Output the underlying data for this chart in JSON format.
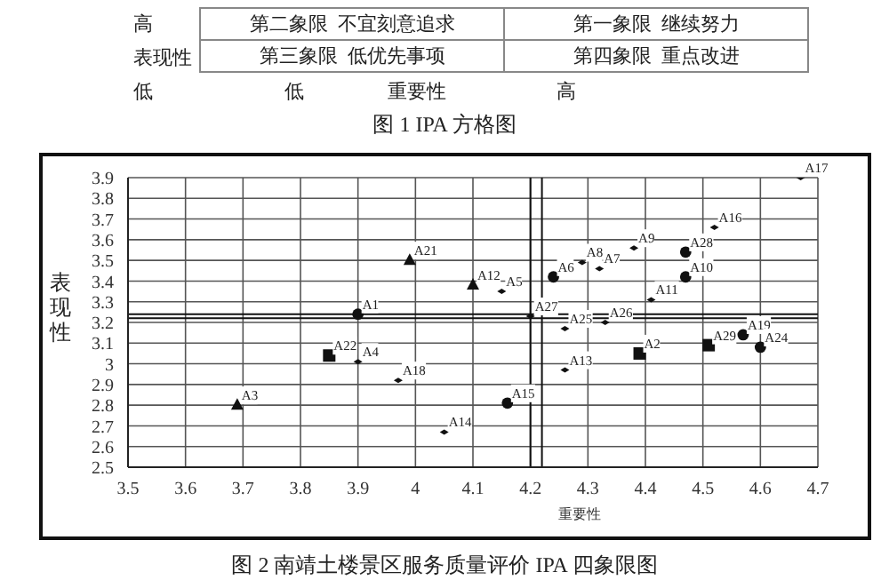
{
  "chart_data": [
    {
      "type": "other",
      "title": "图 1 IPA 方格图",
      "xlabel": "重要性",
      "ylabel": "表现性",
      "categories": [
        "低",
        "高"
      ],
      "y_categories": [
        "高",
        "低"
      ],
      "annotations": [
        "第二象限  不宜刻意追求",
        "第一象限  继续努力",
        "第三象限  低优先事项",
        "第四象限  重点改进"
      ]
    },
    {
      "type": "scatter",
      "title": "图 2 南靖土楼景区服务质量评价 IPA 四象限图",
      "xlabel": "重要性",
      "ylabel": "表现性",
      "xlim": [
        3.5,
        4.7
      ],
      "xticks": [
        3.5,
        3.6,
        3.7,
        3.8,
        3.9,
        4,
        4.1,
        4.2,
        4.3,
        4.4,
        4.5,
        4.6,
        4.7
      ],
      "ylim": [
        2.5,
        3.9
      ],
      "yticks": [
        2.5,
        2.6,
        2.7,
        2.8,
        2.9,
        3,
        3.1,
        3.2,
        3.3,
        3.4,
        3.5,
        3.6,
        3.7,
        3.8,
        3.9
      ],
      "grid": true,
      "series": [
        {
          "color": "#111111",
          "marker": "circle",
          "x": [
            4.24,
            4.47,
            4.47,
            3.9,
            4.57,
            4.6,
            4.16
          ],
          "values": [
            3.42,
            3.54,
            3.42,
            3.24,
            3.14,
            3.08,
            2.81
          ]
        },
        {
          "color": "#111111",
          "marker": "square",
          "x": [
            3.85,
            4.39,
            4.51
          ],
          "values": [
            3.04,
            3.05,
            3.09
          ]
        },
        {
          "color": "#111111",
          "marker": "triangle",
          "x": [
            3.99,
            4.1,
            3.69
          ],
          "values": [
            3.5,
            3.38,
            2.8
          ]
        },
        {
          "color": "#111111",
          "marker": "diamond",
          "x": [
            4.67,
            4.52,
            4.38,
            4.29,
            4.32,
            4.15,
            4.41,
            4.2,
            4.33,
            4.26,
            4.26,
            3.97,
            3.9,
            4.05
          ],
          "values": [
            3.9,
            3.66,
            3.56,
            3.49,
            3.46,
            3.35,
            3.31,
            3.23,
            3.2,
            3.17,
            2.97,
            2.92,
            3.01,
            2.67
          ]
        }
      ],
      "ref_lines": [
        {
          "axis": "x",
          "value": 4.2,
          "color": "#111111"
        },
        {
          "axis": "x",
          "value": 4.22,
          "color": "#111111"
        },
        {
          "axis": "y",
          "value": 3.22,
          "color": "#111111"
        },
        {
          "axis": "y",
          "value": 3.24,
          "color": "#111111"
        }
      ],
      "annotations": [
        {
          "text": "A6",
          "x": 4.24,
          "y": 3.42
        },
        {
          "text": "A28",
          "x": 4.47,
          "y": 3.54
        },
        {
          "text": "A10",
          "x": 4.47,
          "y": 3.42
        },
        {
          "text": "A1",
          "x": 3.9,
          "y": 3.24
        },
        {
          "text": "A19",
          "x": 4.57,
          "y": 3.14
        },
        {
          "text": "A24",
          "x": 4.6,
          "y": 3.08
        },
        {
          "text": "A15",
          "x": 4.16,
          "y": 2.81
        },
        {
          "text": "A22",
          "x": 3.85,
          "y": 3.04
        },
        {
          "text": "A2",
          "x": 4.39,
          "y": 3.05
        },
        {
          "text": "A29",
          "x": 4.51,
          "y": 3.09
        },
        {
          "text": "A21",
          "x": 3.99,
          "y": 3.5
        },
        {
          "text": "A12",
          "x": 4.1,
          "y": 3.38
        },
        {
          "text": "A3",
          "x": 3.69,
          "y": 2.8
        },
        {
          "text": "A17",
          "x": 4.67,
          "y": 3.9
        },
        {
          "text": "A16",
          "x": 4.52,
          "y": 3.66
        },
        {
          "text": "A9",
          "x": 4.38,
          "y": 3.56
        },
        {
          "text": "A8",
          "x": 4.29,
          "y": 3.49
        },
        {
          "text": "A7",
          "x": 4.32,
          "y": 3.46
        },
        {
          "text": "A5",
          "x": 4.15,
          "y": 3.35
        },
        {
          "text": "A11",
          "x": 4.41,
          "y": 3.31
        },
        {
          "text": "A27",
          "x": 4.2,
          "y": 3.23
        },
        {
          "text": "A26",
          "x": 4.33,
          "y": 3.2
        },
        {
          "text": "A25",
          "x": 4.26,
          "y": 3.17
        },
        {
          "text": "A13",
          "x": 4.26,
          "y": 2.97
        },
        {
          "text": "A18",
          "x": 3.97,
          "y": 2.92
        },
        {
          "text": "A4",
          "x": 3.9,
          "y": 3.01
        },
        {
          "text": "A14",
          "x": 4.05,
          "y": 2.67
        }
      ]
    }
  ]
}
